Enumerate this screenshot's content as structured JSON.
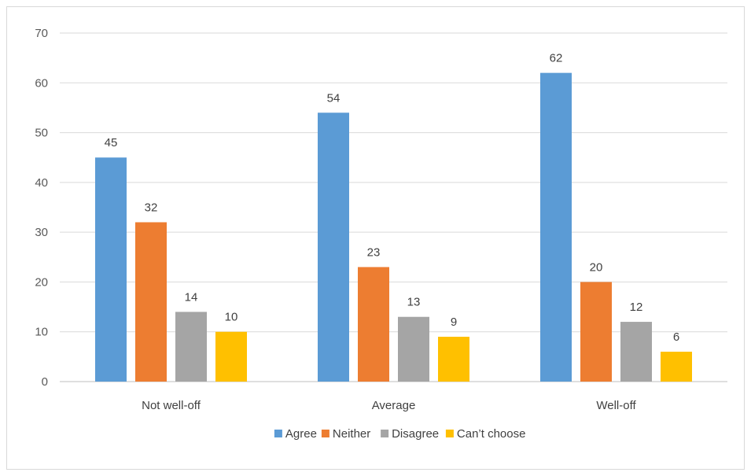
{
  "chart_data": {
    "type": "bar",
    "categories": [
      "Not well-off",
      "Average",
      "Well-off"
    ],
    "series": [
      {
        "name": "Agree",
        "color": "#5B9BD5",
        "values": [
          45,
          54,
          62
        ]
      },
      {
        "name": "Neither",
        "color": "#ED7D31",
        "values": [
          32,
          23,
          20
        ]
      },
      {
        "name": "Disagree",
        "color": "#A5A5A5",
        "values": [
          14,
          13,
          12
        ]
      },
      {
        "name": "Can’t choose",
        "color": "#FFC000",
        "values": [
          10,
          9,
          6
        ]
      }
    ],
    "ylim": [
      0,
      70
    ],
    "yticks": [
      "0",
      "10",
      "20",
      "30",
      "40",
      "50",
      "60",
      "70"
    ],
    "grid": true,
    "legend_position": "bottom"
  }
}
